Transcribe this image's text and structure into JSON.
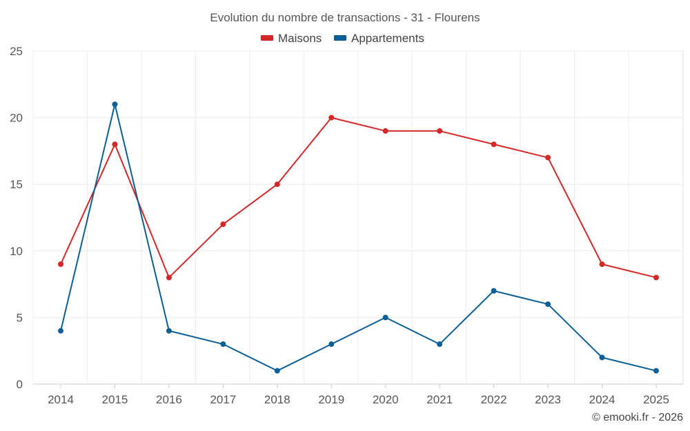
{
  "chart_data": {
    "type": "line",
    "title": "Evolution du nombre de transactions - 31 - Flourens",
    "categories": [
      "2014",
      "2015",
      "2016",
      "2017",
      "2018",
      "2019",
      "2020",
      "2021",
      "2022",
      "2023",
      "2024",
      "2025"
    ],
    "series": [
      {
        "name": "Maisons",
        "color": "#d62728",
        "values": [
          9,
          18,
          8,
          12,
          15,
          20,
          19,
          19,
          18,
          17,
          9,
          8
        ]
      },
      {
        "name": "Appartements",
        "color": "#0b5f96",
        "values": [
          4,
          21,
          4,
          3,
          1,
          3,
          5,
          3,
          7,
          6,
          2,
          1
        ]
      }
    ],
    "ylim": [
      0,
      25
    ],
    "yticks": [
      0,
      5,
      10,
      15,
      20,
      25
    ],
    "xlabel": "",
    "ylabel": "",
    "grid": true,
    "legend_position": "top-center"
  },
  "credit": "© emooki.fr - 2026"
}
